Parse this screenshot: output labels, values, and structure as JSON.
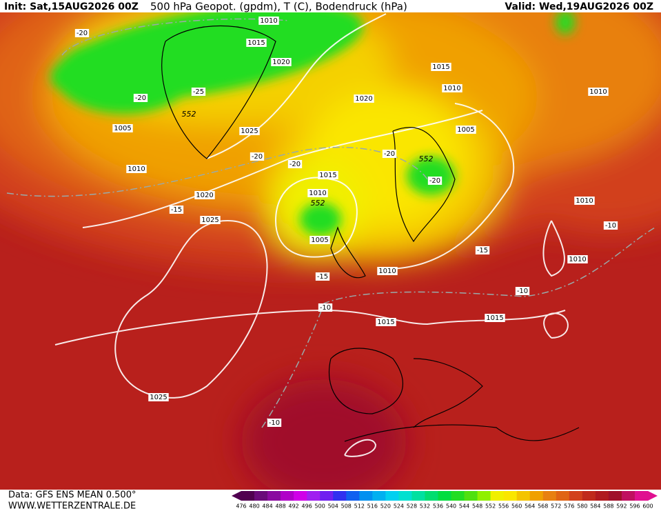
{
  "header": {
    "init": "Init: Sat,15AUG2026 00Z",
    "product": "500 hPa Geopot. (gpdm), T (C), Bodendruck (hPa)",
    "valid": "Valid: Wed,19AUG2026 00Z"
  },
  "footer": {
    "data": "Data: GFS ENS MEAN 0.500°",
    "website": "WWW.WETTERZENTRALE.DE"
  },
  "isobar_labels": [
    1010,
    1015,
    1020,
    1025,
    1020,
    1015,
    1010,
    1005,
    1010,
    1005,
    1010,
    1020,
    1025,
    1015,
    1010,
    1005,
    1010,
    1015,
    1015,
    1010,
    1010,
    1025
  ],
  "temperature_labels": [
    -20,
    -20,
    -25,
    -20,
    -20,
    -20,
    -20,
    -15,
    -15,
    -10,
    -15,
    -10,
    -10,
    -10
  ],
  "geopotential_labels": [
    552,
    552,
    552
  ],
  "color_scale": {
    "labels": [
      476,
      480,
      484,
      488,
      492,
      496,
      500,
      504,
      508,
      512,
      516,
      520,
      524,
      528,
      532,
      536,
      540,
      544,
      548,
      552,
      556,
      560,
      564,
      568,
      572,
      576,
      580,
      584,
      588,
      592,
      596,
      600
    ],
    "colors": [
      "#500050",
      "#6a0a7a",
      "#8a0aa0",
      "#b000c8",
      "#d000e8",
      "#a020f0",
      "#7020f0",
      "#3030f0",
      "#1060f0",
      "#0090f0",
      "#00b0f0",
      "#00d0f0",
      "#00e0d0",
      "#00e0a0",
      "#00dd70",
      "#00dd40",
      "#22dd22",
      "#50e010",
      "#90f000",
      "#f0f000",
      "#fae600",
      "#f4c400",
      "#f0a000",
      "#e88010",
      "#e06414",
      "#d2401c",
      "#c02a1c",
      "#b01a20",
      "#a0102a",
      "#c01060",
      "#e01090"
    ]
  }
}
